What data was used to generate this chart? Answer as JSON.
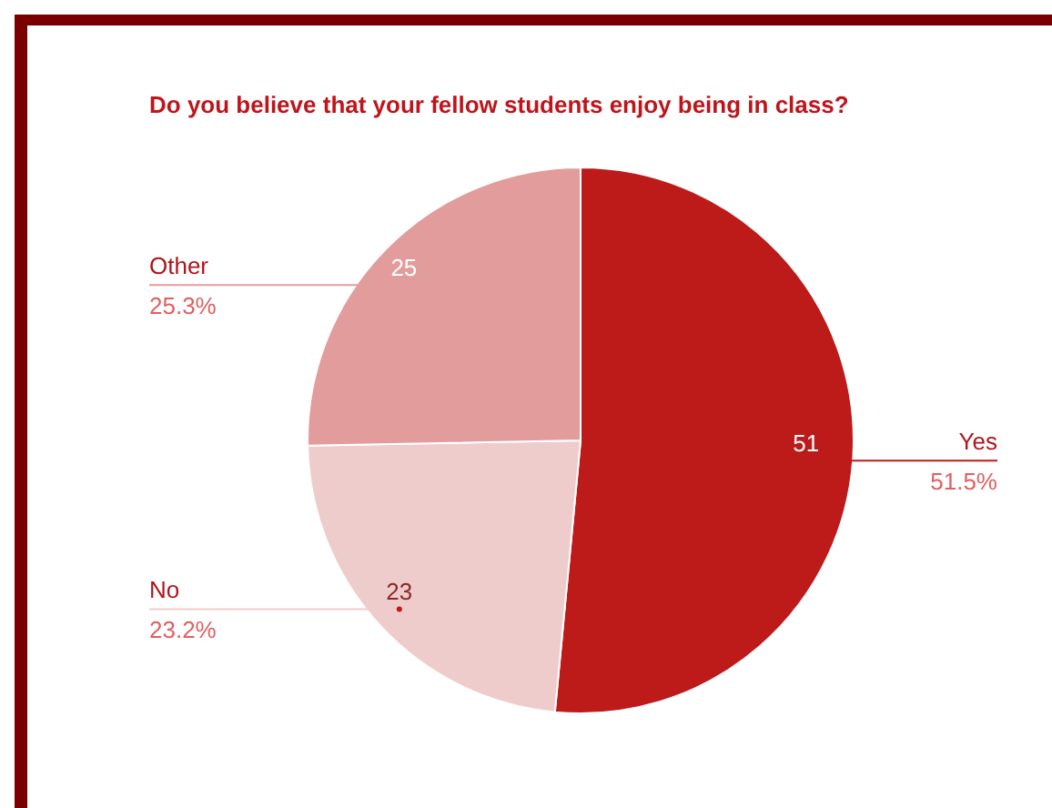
{
  "chart_data": {
    "type": "pie",
    "title": "Do you believe that your fellow students enjoy being in class?",
    "categories": [
      "Yes",
      "No",
      "Other"
    ],
    "values": [
      51.5,
      23.2,
      25.3
    ],
    "colors": [
      "#bd1a1a",
      "#efcccc",
      "#e29c9c"
    ],
    "value_labels": [
      "51.5%",
      "23.2%",
      "25.3%"
    ],
    "annotations": [
      {
        "text": "51",
        "x": "Yes"
      },
      {
        "text": "23",
        "x": "No"
      },
      {
        "text": "25",
        "x": "Other"
      }
    ]
  }
}
